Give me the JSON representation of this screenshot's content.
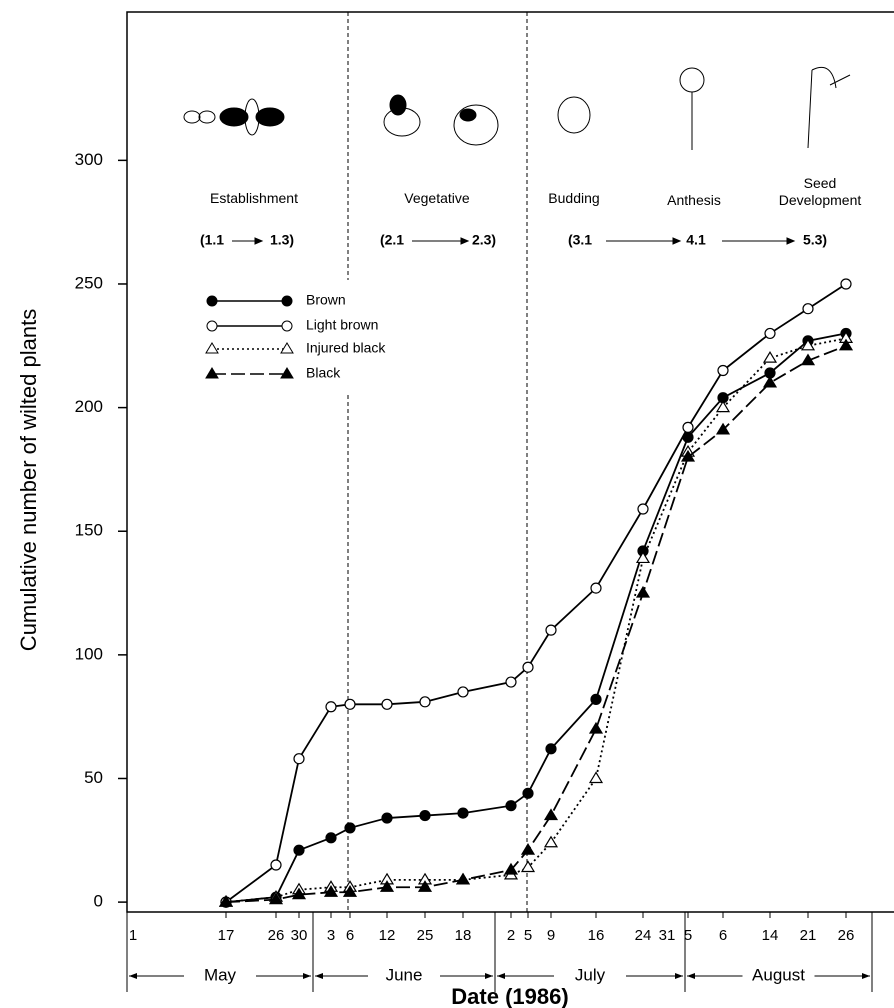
{
  "chart_data": {
    "type": "line",
    "y_label": "Cumulative number of wilted plants",
    "x_label": "Date (1986)",
    "categories": [
      "17",
      "26",
      "30",
      "3",
      "6",
      "12",
      "25",
      "18",
      "2",
      "5",
      "9",
      "16",
      "24",
      "5",
      "6",
      "14",
      "21",
      "26"
    ],
    "x_extra_labels": [
      "1",
      "31"
    ],
    "months": [
      "May",
      "June",
      "July",
      "August"
    ],
    "stages": [
      "Establishment",
      "Vegetative",
      "Budding",
      "Anthesis",
      "Seed Development"
    ],
    "stage_codes": [
      "(1.1",
      "1.3)",
      "(2.1",
      "2.3)",
      "(3.1",
      "4.1",
      "5.3)"
    ],
    "ylim": [
      -4,
      360
    ],
    "yticks": [
      0,
      50,
      100,
      150,
      200,
      250,
      300
    ],
    "series": [
      {
        "name": "Brown",
        "color": "#000000",
        "marker": "filled-circle",
        "line_style": "solid",
        "values": [
          0,
          2,
          21,
          26,
          30,
          34,
          35,
          36,
          39,
          44,
          62,
          82,
          142,
          188,
          204,
          214,
          227,
          230
        ]
      },
      {
        "name": "Light brown",
        "color": "#000000",
        "marker": "open-circle",
        "line_style": "solid",
        "values": [
          0,
          15,
          58,
          79,
          80,
          80,
          81,
          85,
          89,
          95,
          110,
          127,
          159,
          192,
          215,
          230,
          240,
          250
        ]
      },
      {
        "name": "Injured black",
        "color": "#000000",
        "marker": "open-triangle",
        "line_style": "dotted",
        "values": [
          0,
          2,
          5,
          6,
          6,
          9,
          9,
          9,
          11,
          14,
          24,
          50,
          139,
          182,
          200,
          220,
          225,
          228
        ]
      },
      {
        "name": "Black",
        "color": "#000000",
        "marker": "filled-triangle",
        "line_style": "dashed",
        "values": [
          0,
          1,
          3,
          4,
          4,
          6,
          6,
          9,
          13,
          21,
          35,
          70,
          125,
          180,
          191,
          210,
          219,
          225
        ]
      }
    ]
  }
}
